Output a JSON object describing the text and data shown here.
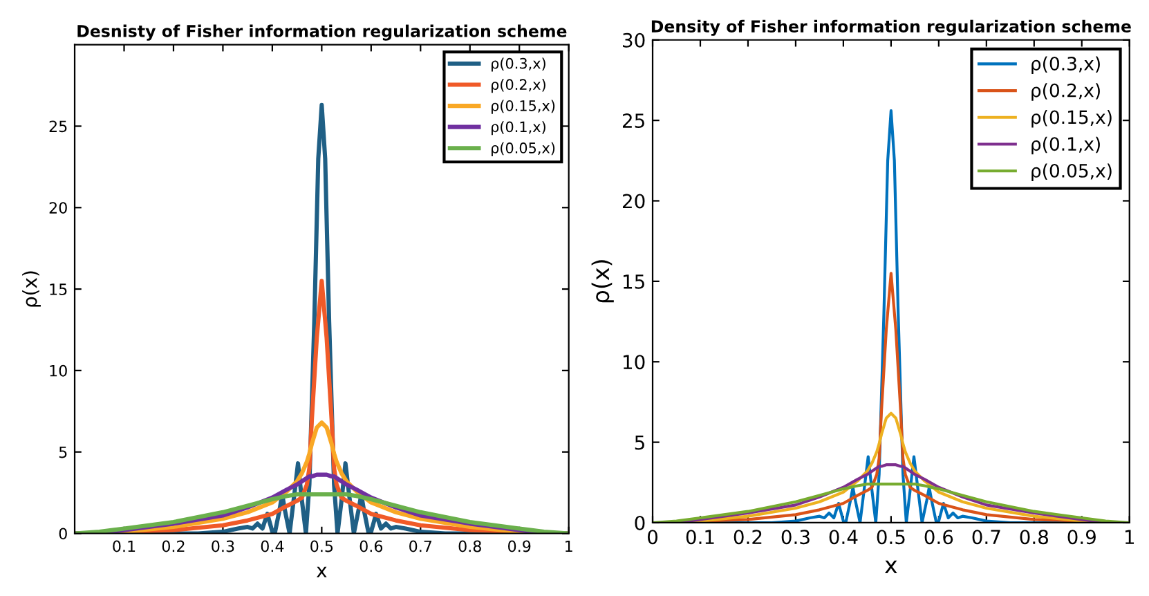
{
  "chart_data": [
    {
      "type": "line",
      "title": "Desnisty of Fisher information regularization scheme",
      "xlabel": "x",
      "ylabel": "ρ(x)",
      "xlim": [
        0,
        1
      ],
      "ylim": [
        0,
        30
      ],
      "xticks": [
        0.1,
        0.2,
        0.3,
        0.4,
        0.5,
        0.6,
        0.7,
        0.8,
        0.9,
        1
      ],
      "yticks": [
        0,
        5,
        10,
        15,
        20,
        25
      ],
      "legend": "top right",
      "x": [
        0,
        0.05,
        0.1,
        0.2,
        0.3,
        0.35,
        0.4,
        0.43,
        0.45,
        0.46,
        0.47,
        0.475,
        0.48,
        0.49,
        0.5,
        0.51,
        0.52,
        0.525,
        0.53,
        0.54,
        0.55,
        0.57,
        0.6,
        0.65,
        0.7,
        0.8,
        0.9,
        0.95,
        1
      ],
      "series": [
        {
          "name": "ρ(0.3,x)",
          "color": "#1f5f85",
          "x": [
            0,
            0.25,
            0.3,
            0.33,
            0.35,
            0.36,
            0.37,
            0.38,
            0.39,
            0.4,
            0.405,
            0.415,
            0.42,
            0.425,
            0.435,
            0.445,
            0.452,
            0.46,
            0.468,
            0.475,
            0.485,
            0.493,
            0.5,
            0.507,
            0.515,
            0.525,
            0.532,
            0.54,
            0.548,
            0.555,
            0.565,
            0.575,
            0.58,
            0.585,
            0.595,
            0.6,
            0.61,
            0.62,
            0.63,
            0.64,
            0.65,
            0.67,
            0.7,
            0.75,
            1
          ],
          "values": [
            0,
            0,
            0.1,
            0.3,
            0.4,
            0.3,
            0.6,
            0.3,
            1.2,
            0.1,
            0,
            1.5,
            2.4,
            1.5,
            0,
            2.5,
            4.3,
            2.0,
            0,
            3,
            13,
            23,
            26.3,
            23,
            13,
            3,
            0,
            2.0,
            4.3,
            2.5,
            0,
            1.5,
            2.4,
            1.5,
            0,
            0.1,
            1.2,
            0.3,
            0.6,
            0.3,
            0.4,
            0.3,
            0.1,
            0,
            0
          ]
        },
        {
          "name": "ρ(0.2,x)",
          "color": "#f05a28",
          "values": [
            0,
            0,
            0.1,
            0.2,
            0.5,
            0.8,
            1.2,
            1.7,
            2.0,
            2.2,
            3,
            4,
            7,
            12,
            15.5,
            12,
            7,
            4,
            3,
            2.2,
            2.0,
            1.7,
            1.2,
            0.8,
            0.5,
            0.2,
            0.1,
            0,
            0
          ]
        },
        {
          "name": "ρ(0.15,x)",
          "color": "#f9a825",
          "values": [
            0,
            0,
            0.1,
            0.4,
            0.9,
            1.3,
            1.9,
            2.6,
            3.2,
            3.7,
            4.4,
            4.9,
            5.5,
            6.5,
            6.8,
            6.5,
            5.5,
            4.9,
            4.4,
            3.7,
            3.2,
            2.6,
            1.9,
            1.3,
            0.9,
            0.4,
            0.1,
            0,
            0
          ]
        },
        {
          "name": "ρ(0.1,x)",
          "color": "#7030a0",
          "values": [
            0,
            0,
            0.2,
            0.6,
            1.1,
            1.6,
            2.2,
            2.7,
            3.0,
            3.2,
            3.4,
            3.5,
            3.5,
            3.6,
            3.6,
            3.6,
            3.5,
            3.5,
            3.4,
            3.2,
            3.0,
            2.7,
            2.2,
            1.6,
            1.1,
            0.6,
            0.2,
            0,
            0
          ]
        },
        {
          "name": "ρ(0.05,x)",
          "color": "#6ab04c",
          "values": [
            0,
            0.1,
            0.3,
            0.7,
            1.3,
            1.7,
            2.1,
            2.3,
            2.4,
            2.4,
            2.4,
            2.4,
            2.4,
            2.4,
            2.4,
            2.4,
            2.4,
            2.4,
            2.4,
            2.4,
            2.4,
            2.3,
            2.1,
            1.7,
            1.3,
            0.7,
            0.3,
            0.1,
            0
          ]
        }
      ]
    },
    {
      "type": "line",
      "title": "Density of Fisher information regularization scheme",
      "xlabel": "x",
      "ylabel": "ρ(x)",
      "xlim": [
        0,
        1
      ],
      "ylim": [
        0,
        30
      ],
      "xticks": [
        0,
        0.1,
        0.2,
        0.3,
        0.4,
        0.5,
        0.6,
        0.7,
        0.8,
        0.9,
        1
      ],
      "yticks": [
        0,
        5,
        10,
        15,
        20,
        25,
        30
      ],
      "legend": "top right",
      "x": [
        0,
        0.05,
        0.1,
        0.2,
        0.3,
        0.35,
        0.4,
        0.43,
        0.45,
        0.46,
        0.47,
        0.475,
        0.48,
        0.49,
        0.5,
        0.51,
        0.52,
        0.525,
        0.53,
        0.54,
        0.55,
        0.57,
        0.6,
        0.65,
        0.7,
        0.8,
        0.9,
        0.95,
        1
      ],
      "series": [
        {
          "name": "ρ(0.3,x)",
          "color": "#0072bd",
          "x": [
            0,
            0.25,
            0.3,
            0.33,
            0.35,
            0.36,
            0.37,
            0.38,
            0.39,
            0.4,
            0.405,
            0.415,
            0.42,
            0.425,
            0.435,
            0.445,
            0.452,
            0.46,
            0.468,
            0.475,
            0.485,
            0.493,
            0.5,
            0.507,
            0.515,
            0.525,
            0.532,
            0.54,
            0.548,
            0.555,
            0.565,
            0.575,
            0.58,
            0.585,
            0.595,
            0.6,
            0.61,
            0.62,
            0.63,
            0.64,
            0.65,
            0.67,
            0.7,
            0.75,
            1
          ],
          "values": [
            0,
            0,
            0.1,
            0.3,
            0.4,
            0.3,
            0.6,
            0.3,
            1.2,
            0.1,
            0,
            1.4,
            2.2,
            1.4,
            0,
            2.4,
            4.1,
            2.0,
            0,
            3,
            13,
            22.5,
            25.6,
            22.5,
            13,
            3,
            0,
            2.0,
            4.1,
            2.4,
            0,
            1.4,
            2.2,
            1.4,
            0,
            0.1,
            1.2,
            0.3,
            0.6,
            0.3,
            0.4,
            0.3,
            0.1,
            0,
            0
          ]
        },
        {
          "name": "ρ(0.2,x)",
          "color": "#d95319",
          "values": [
            0,
            0,
            0.1,
            0.2,
            0.5,
            0.8,
            1.2,
            1.7,
            2.0,
            2.2,
            3,
            4,
            7,
            12,
            15.5,
            12,
            7,
            4,
            3,
            2.2,
            2.0,
            1.7,
            1.2,
            0.8,
            0.5,
            0.2,
            0.1,
            0,
            0
          ]
        },
        {
          "name": "ρ(0.15,x)",
          "color": "#edb120",
          "values": [
            0,
            0,
            0.1,
            0.4,
            0.9,
            1.3,
            1.9,
            2.6,
            3.2,
            3.7,
            4.4,
            4.9,
            5.5,
            6.5,
            6.8,
            6.5,
            5.5,
            4.9,
            4.4,
            3.7,
            3.2,
            2.6,
            1.9,
            1.3,
            0.9,
            0.4,
            0.1,
            0,
            0
          ]
        },
        {
          "name": "ρ(0.1,x)",
          "color": "#7e2f8e",
          "values": [
            0,
            0,
            0.2,
            0.6,
            1.1,
            1.6,
            2.2,
            2.7,
            3.0,
            3.2,
            3.4,
            3.5,
            3.5,
            3.6,
            3.6,
            3.6,
            3.5,
            3.5,
            3.4,
            3.2,
            3.0,
            2.7,
            2.2,
            1.6,
            1.1,
            0.6,
            0.2,
            0,
            0
          ]
        },
        {
          "name": "ρ(0.05,x)",
          "color": "#77ac30",
          "values": [
            0,
            0.1,
            0.3,
            0.7,
            1.3,
            1.7,
            2.1,
            2.3,
            2.4,
            2.4,
            2.4,
            2.4,
            2.4,
            2.4,
            2.4,
            2.4,
            2.4,
            2.4,
            2.4,
            2.4,
            2.4,
            2.3,
            2.1,
            1.7,
            1.3,
            0.7,
            0.3,
            0.1,
            0
          ]
        }
      ]
    }
  ]
}
